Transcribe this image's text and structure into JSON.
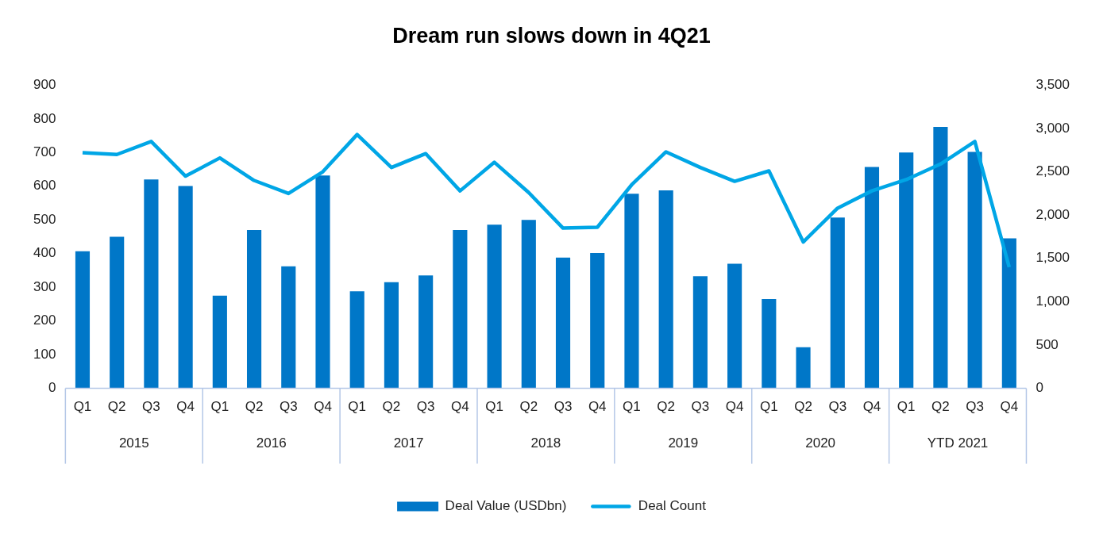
{
  "chart_data": {
    "type": "bar",
    "title": "Dream run slows down in 4Q21",
    "categories": [
      "Q1",
      "Q2",
      "Q3",
      "Q4",
      "Q1",
      "Q2",
      "Q3",
      "Q4",
      "Q1",
      "Q2",
      "Q3",
      "Q4",
      "Q1",
      "Q2",
      "Q3",
      "Q4",
      "Q1",
      "Q2",
      "Q3",
      "Q4",
      "Q1",
      "Q2",
      "Q3",
      "Q4",
      "Q1",
      "Q2",
      "Q3",
      "Q4"
    ],
    "series": [
      {
        "name": "Deal Value (USDbn)",
        "color": "#0077c8",
        "values": [
          407,
          450,
          620,
          601,
          275,
          470,
          362,
          632,
          288,
          315,
          335,
          470,
          486,
          500,
          388,
          402,
          578,
          588,
          333,
          370,
          265,
          122,
          507,
          657,
          700,
          776,
          702,
          445
        ]
      },
      {
        "name": "Deal Count",
        "type": "line",
        "axis": "y2",
        "color": "#00a6e6",
        "values": [
          2720,
          2700,
          2850,
          2450,
          2660,
          2400,
          2250,
          2500,
          2930,
          2550,
          2710,
          2280,
          2610,
          2260,
          1850,
          1860,
          2350,
          2730,
          2550,
          2390,
          2510,
          1690,
          2080,
          2280,
          2410,
          2590,
          2850,
          1400
        ]
      }
    ],
    "annotations": [
      "2015",
      "2016",
      "2017",
      "2018",
      "2019",
      "2020",
      "YTD 2021"
    ],
    "ylim": [
      0,
      900
    ],
    "yticks": [
      0,
      100,
      200,
      300,
      400,
      500,
      600,
      700,
      800,
      900
    ],
    "y2lim": [
      0,
      3500
    ],
    "y2ticks": [
      0,
      {
        "value": 500,
        "label": "500"
      },
      {
        "value": 1000,
        "label": "1,000"
      },
      {
        "value": 1500,
        "label": "1,500"
      },
      {
        "value": 2000,
        "label": "2,000"
      },
      {
        "value": 2500,
        "label": "2,500"
      },
      {
        "value": 3000,
        "label": "3,000"
      },
      {
        "value": 3500,
        "label": "3,500"
      }
    ],
    "grid": false,
    "legend": "bottom",
    "marker": "none",
    "line_style": "solid"
  }
}
